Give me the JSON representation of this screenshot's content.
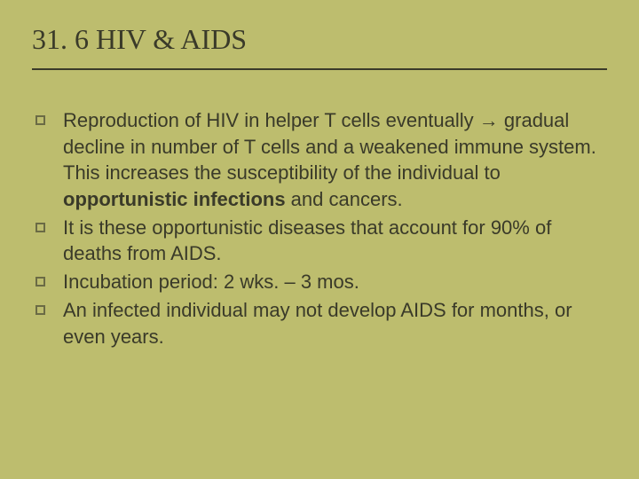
{
  "slide": {
    "background_color": "#bdbd6e",
    "title_color": "#3a3a29",
    "text_color": "#3a3a29",
    "bullet_border_color": "#6b6b45",
    "title_font": "Times New Roman",
    "body_font": "Verdana",
    "title_fontsize": 32,
    "body_fontsize": 22,
    "title": "31. 6  HIV & AIDS",
    "bullets": [
      {
        "segments": [
          {
            "text": "Reproduction of HIV in helper T cells eventually → gradual decline in number of T cells and a weakened immune system.  This increases the susceptibility of the individual to ",
            "bold": false
          },
          {
            "text": "opportunistic infections",
            "bold": true
          },
          {
            "text": " and cancers.",
            "bold": false
          }
        ]
      },
      {
        "segments": [
          {
            "text": "It is these opportunistic diseases that account for 90% of deaths from AIDS.",
            "bold": false
          }
        ]
      },
      {
        "segments": [
          {
            "text": "Incubation period: 2 wks. – 3 mos.",
            "bold": false
          }
        ]
      },
      {
        "segments": [
          {
            "text": "An infected individual may not develop AIDS for months, or even years.",
            "bold": false
          }
        ]
      }
    ]
  }
}
